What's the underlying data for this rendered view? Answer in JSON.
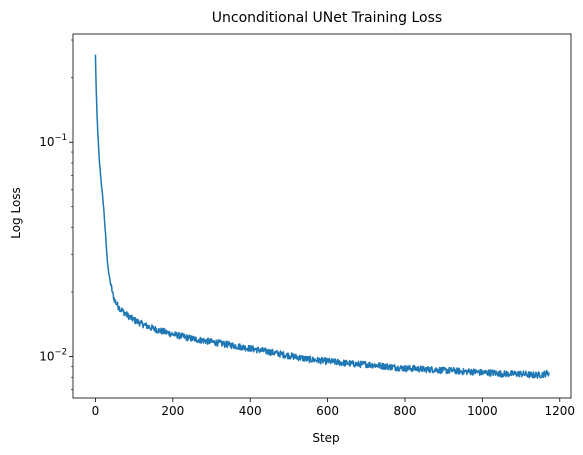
{
  "chart_data": {
    "type": "line",
    "title": "Unconditional UNet Training Loss",
    "xlabel": "Step",
    "ylabel": "Log Loss",
    "yscale": "log",
    "xlim": [
      -58,
      1229
    ],
    "ylim": [
      0.0064,
      0.32
    ],
    "grid": false,
    "legend": "none",
    "xticks": [
      0,
      200,
      400,
      600,
      800,
      1000,
      1200
    ],
    "xtick_labels": [
      "0",
      "200",
      "400",
      "600",
      "800",
      "1000",
      "1200"
    ],
    "yticks_major": [
      0.01,
      0.1
    ],
    "ytick_labels": [
      {
        "base": "10",
        "exp": "−2"
      },
      {
        "base": "10",
        "exp": "−1"
      }
    ],
    "series": [
      {
        "color": "#1f77b4",
        "x": [
          0,
          2,
          4,
          6,
          8,
          10,
          12,
          15,
          18,
          21,
          24,
          27,
          30,
          35,
          40,
          45,
          50,
          60,
          70,
          80,
          90,
          100,
          120,
          140,
          160,
          180,
          200,
          225,
          250,
          275,
          300,
          325,
          350,
          375,
          400,
          425,
          450,
          475,
          500,
          525,
          550,
          575,
          600,
          625,
          650,
          675,
          700,
          725,
          750,
          775,
          800,
          825,
          850,
          875,
          900,
          925,
          950,
          975,
          1000,
          1025,
          1050,
          1075,
          1100,
          1125,
          1150,
          1172
        ],
        "y": [
          0.255,
          0.175,
          0.135,
          0.112,
          0.095,
          0.082,
          0.075,
          0.065,
          0.057,
          0.05,
          0.042,
          0.035,
          0.029,
          0.024,
          0.0215,
          0.0195,
          0.0182,
          0.017,
          0.0163,
          0.0157,
          0.0152,
          0.0148,
          0.0142,
          0.0137,
          0.0133,
          0.013,
          0.0127,
          0.0124,
          0.0121,
          0.0119,
          0.0117,
          0.0115,
          0.0113,
          0.0111,
          0.0109,
          0.0107,
          0.0105,
          0.0103,
          0.0101,
          0.0099,
          0.0097,
          0.0096,
          0.0095,
          0.0094,
          0.0093,
          0.0092,
          0.0092,
          0.0091,
          0.009,
          0.0089,
          0.0088,
          0.0088,
          0.0087,
          0.0087,
          0.0086,
          0.0086,
          0.0085,
          0.0085,
          0.0084,
          0.0084,
          0.0083,
          0.0083,
          0.0083,
          0.0082,
          0.0082,
          0.0084
        ]
      }
    ]
  }
}
